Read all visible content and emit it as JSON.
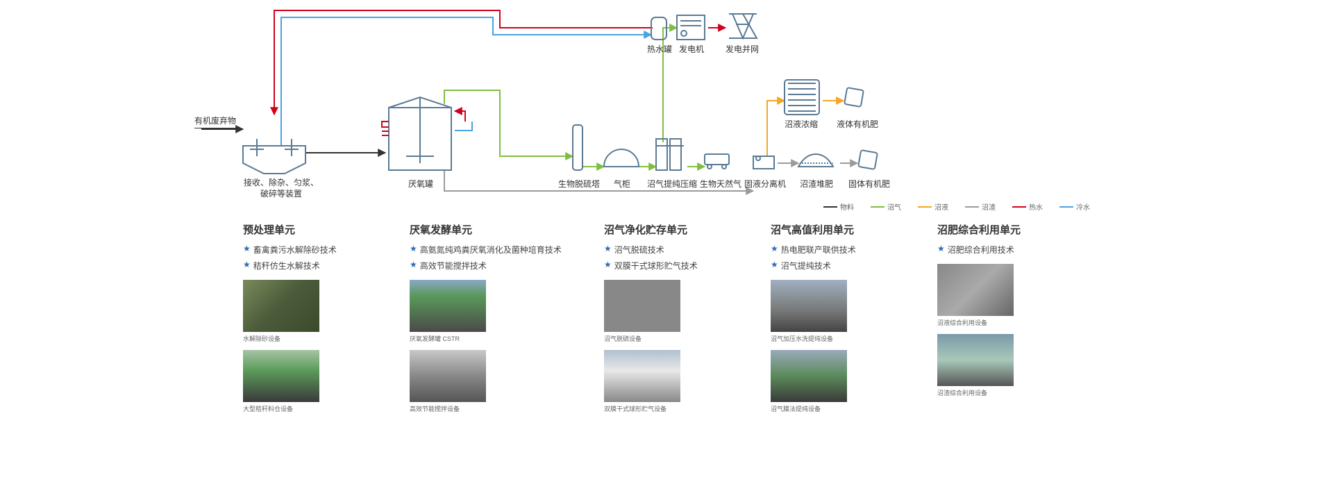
{
  "diagram": {
    "input_label": "有机废弃物",
    "nodes": {
      "pretreat": "接收、除杂、匀浆、\n破碎等装置",
      "anaerobic": "厌氧罐",
      "desulfur": "生物脱硫塔",
      "gasholder": "气柜",
      "compress": "沼气提纯压缩",
      "bng": "生物天然气",
      "hot_tank": "热水罐",
      "generator": "发电机",
      "grid": "发电并网",
      "sep": "固液分离机",
      "slurry_compost": "沼渣堆肥",
      "solid_fert": "固体有机肥",
      "slurry_conc": "沼液浓缩",
      "liquid_fert": "液体有机肥"
    },
    "colors": {
      "material": "#333333",
      "biogas": "#7fbf3f",
      "slurry_liquid": "#f5a623",
      "slurry_solid": "#9b9b9b",
      "hot_water": "#d0021b",
      "cold_water": "#4aa3df",
      "outline": "#5a7a94",
      "outline_dark": "#3a5a74"
    }
  },
  "legend": [
    {
      "label": "物料",
      "color": "#333333"
    },
    {
      "label": "沼气",
      "color": "#7fbf3f"
    },
    {
      "label": "沼液",
      "color": "#f5a623"
    },
    {
      "label": "沼渣",
      "color": "#9b9b9b"
    },
    {
      "label": "热水",
      "color": "#d0021b"
    },
    {
      "label": "冷水",
      "color": "#4aa3df"
    }
  ],
  "columns": [
    {
      "title": "预处理单元",
      "techs": [
        "畜禽粪污水解除砂技术",
        "秸秆仿生水解技术"
      ],
      "thumbs": [
        {
          "caption": "水解除砂设备",
          "cls": "ph1"
        },
        {
          "caption": "大型秸秆料仓设备",
          "cls": "ph2"
        }
      ]
    },
    {
      "title": "厌氧发酵单元",
      "wide": true,
      "techs": [
        "高氨氮纯鸡粪厌氧消化及菌种培育技术",
        "高效节能搅拌技术"
      ],
      "thumbs": [
        {
          "caption": "厌氧发酵罐 CSTR",
          "cls": "ph3"
        },
        {
          "caption": "高效节能搅拌设备",
          "cls": "ph4"
        }
      ]
    },
    {
      "title": "沼气净化贮存单元",
      "techs": [
        "沼气脱硫技术",
        "双膜干式球形贮气技术"
      ],
      "thumbs": [
        {
          "caption": "沼气脱硫设备",
          "cls": "ph5"
        },
        {
          "caption": "双膜干式球形贮气设备",
          "cls": "ph6"
        }
      ]
    },
    {
      "title": "沼气高值利用单元",
      "techs": [
        "热电肥联产联供技术",
        "沼气提纯技术"
      ],
      "thumbs": [
        {
          "caption": "沼气加压水洗提纯设备",
          "cls": "ph7"
        },
        {
          "caption": "沼气膜法提纯设备",
          "cls": "ph8"
        }
      ]
    },
    {
      "title": "沼肥综合利用单元",
      "techs": [
        "沼肥综合利用技术"
      ],
      "thumbs": [
        {
          "caption": "沼液综合利用设备",
          "cls": "ph9"
        },
        {
          "caption": "沼渣综合利用设备",
          "cls": "ph10"
        }
      ]
    }
  ]
}
